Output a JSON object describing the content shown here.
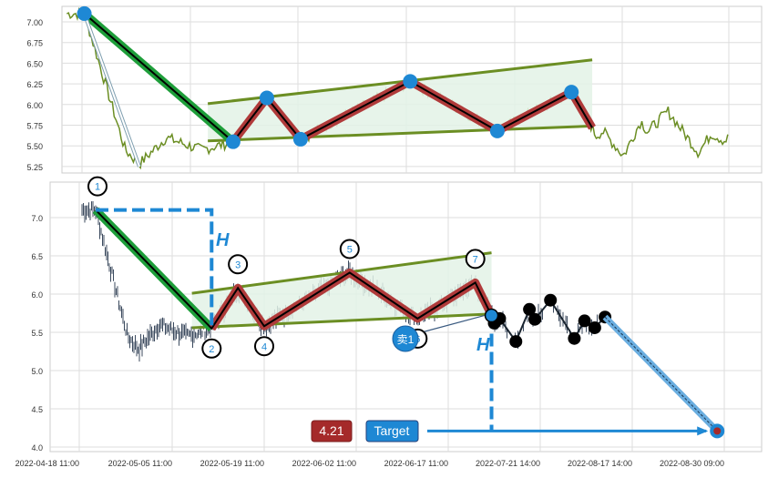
{
  "chart_data": [
    {
      "type": "line",
      "panel": "top",
      "ylim": [
        5.2,
        7.15
      ],
      "yticks": [
        "5.25",
        "5.50",
        "5.75",
        "6.00",
        "6.25",
        "6.50",
        "6.75",
        "7.00"
      ],
      "grid": true,
      "series_color": "#6b8e23",
      "pivot_color": "#1e88d4"
    },
    {
      "type": "candlestick",
      "panel": "bottom",
      "ylim": [
        3.95,
        7.4
      ],
      "yticks": [
        "4.0",
        "4.5",
        "5.0",
        "5.5",
        "6.0",
        "6.5",
        "7.0"
      ],
      "xticks": [
        "2022-04-18 11:00",
        "2022-05-05 11:00",
        "2022-05-19 11:00",
        "2022-06-02 11:00",
        "2022-06-17 11:00",
        "2022-07-21 14:00",
        "2022-08-17 14:00",
        "2022-08-30 09:00"
      ],
      "grid": true,
      "candle_color": "#3b4a5e"
    }
  ],
  "pattern": {
    "pivots": [
      {
        "label": "1",
        "date": "2022-04-21",
        "price": 7.1,
        "label_pos": "above"
      },
      {
        "label": "2",
        "date": "2022-05-11",
        "price": 5.55,
        "label_pos": "below"
      },
      {
        "label": "3",
        "date": "2022-05-15",
        "price": 6.08,
        "label_pos": "above"
      },
      {
        "label": "4",
        "date": "2022-05-19",
        "price": 5.58,
        "label_pos": "below"
      },
      {
        "label": "5",
        "date": "2022-06-01",
        "price": 6.28,
        "label_pos": "above"
      },
      {
        "label": "6",
        "date": "2022-06-12",
        "price": 5.68,
        "label_pos": "below"
      },
      {
        "label": "7",
        "date": "2022-06-27",
        "price": 6.15,
        "label_pos": "above"
      }
    ],
    "breakout": {
      "date": "2022-07-03",
      "price": 5.72
    },
    "upper_trendline": [
      {
        "date": "2022-05-08",
        "price": 6.01
      },
      {
        "date": "2022-07-03",
        "price": 6.54
      }
    ],
    "lower_trendline": [
      {
        "date": "2022-05-08",
        "price": 5.56
      },
      {
        "date": "2022-07-03",
        "price": 5.74
      }
    ],
    "after_breakout": [
      {
        "date": "2022-07-04",
        "price": 5.62
      },
      {
        "date": "2022-07-06",
        "price": 5.68
      },
      {
        "date": "2022-07-12",
        "price": 5.38
      },
      {
        "date": "2022-07-17",
        "price": 5.8
      },
      {
        "date": "2022-07-19",
        "price": 5.67
      },
      {
        "date": "2022-07-24",
        "price": 5.92
      },
      {
        "date": "2022-07-31",
        "price": 5.42
      },
      {
        "date": "2022-08-03",
        "price": 5.65
      },
      {
        "date": "2022-08-06",
        "price": 5.56
      },
      {
        "date": "2022-08-09",
        "price": 5.7
      }
    ],
    "target": {
      "date": "2022-08-29",
      "price": 4.21
    },
    "height_label": "H",
    "sell_label": "卖1",
    "target_label": "Target",
    "target_value": "4.21",
    "colors": {
      "trend_down": "#1e9e3a",
      "zigzag": "#b03a3a",
      "trendline": "#6b8e23",
      "fill": "#e3f2e6",
      "accent_blue": "#1e88d4",
      "target_box": "#a52a2a"
    }
  }
}
